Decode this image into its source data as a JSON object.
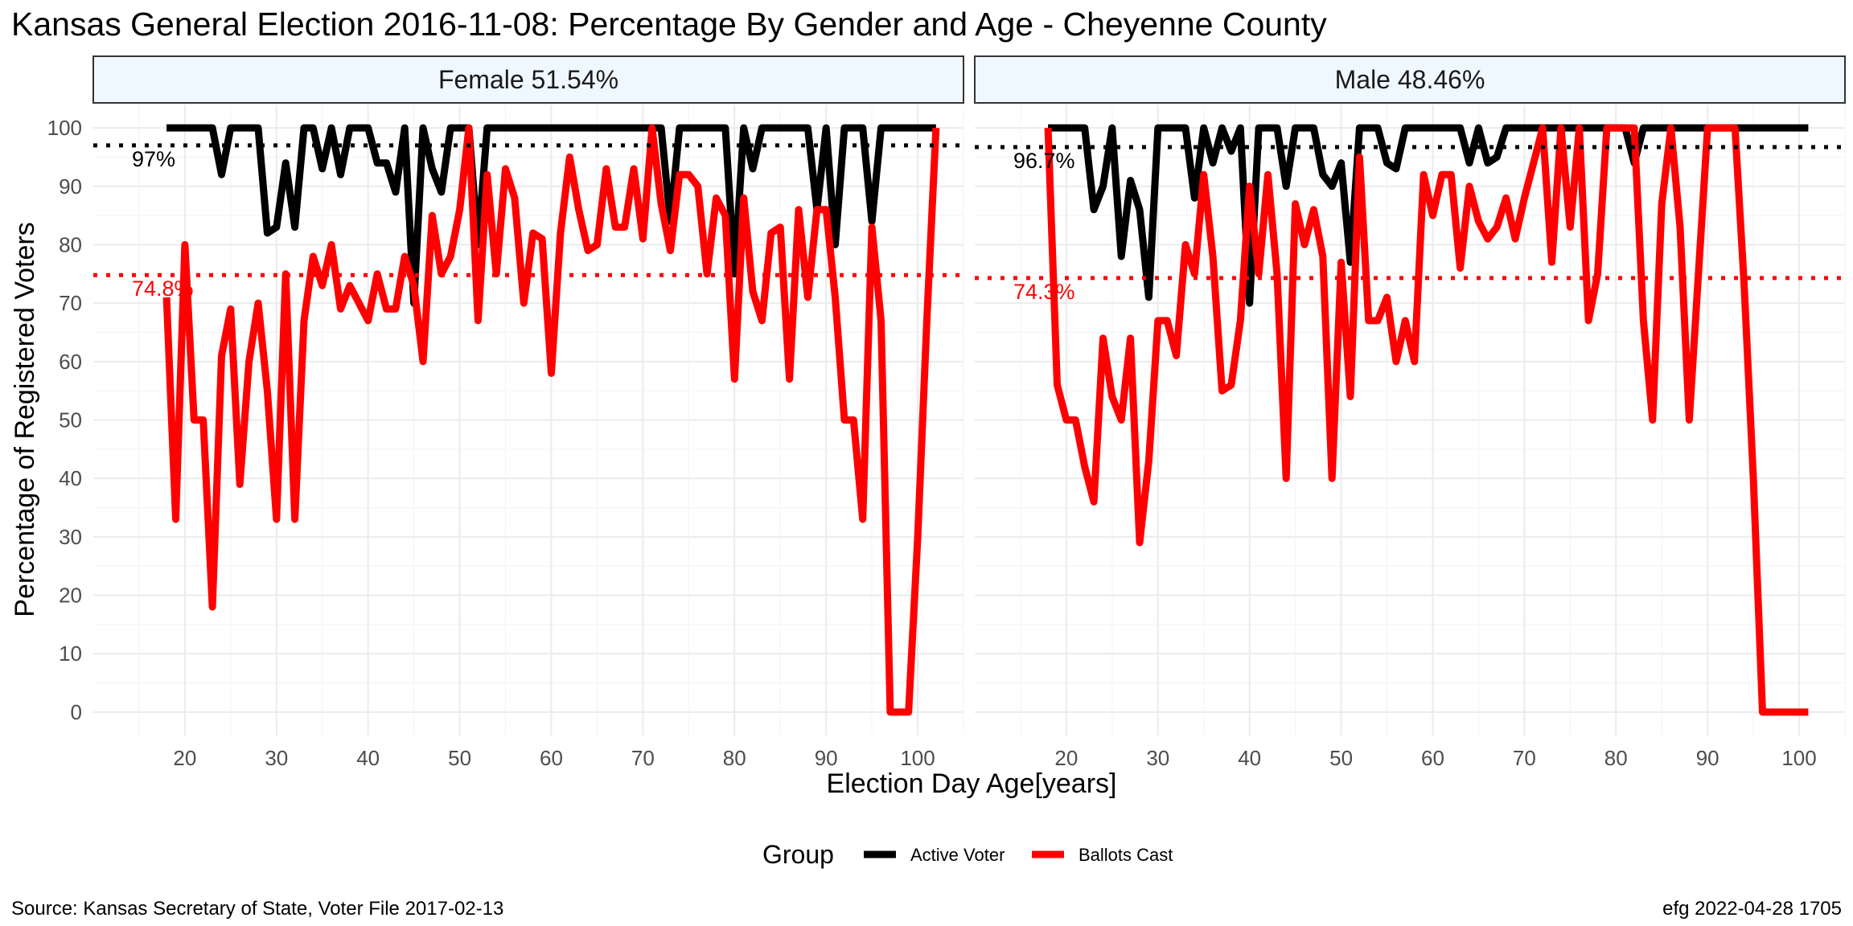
{
  "title": "Kansas General Election 2016-11-08:  Percentage By Gender and Age - Cheyenne County",
  "caption_left": "Source:  Kansas Secretary of State, Voter File  2017-02-13",
  "caption_right": "efg 2022-04-28 1705",
  "legend": {
    "title": "Group",
    "items": [
      {
        "label": "Active Voter",
        "color": "#000000"
      },
      {
        "label": "Ballots Cast",
        "color": "#ff0000"
      }
    ]
  },
  "chart_data": {
    "type": "line",
    "xlabel": "Election Day Age[years]",
    "ylabel": "Percentage of Registered Voters",
    "xlim": [
      10,
      105
    ],
    "ylim": [
      -4,
      104
    ],
    "x_ticks": [
      20,
      30,
      40,
      50,
      60,
      70,
      80,
      90,
      100
    ],
    "y_ticks": [
      0,
      10,
      20,
      30,
      40,
      50,
      60,
      70,
      80,
      90,
      100
    ],
    "grid": true,
    "legend_position": "bottom",
    "colors": {
      "active": "#000000",
      "ballots": "#ff0000",
      "strip_fill": "#f0f8ff"
    },
    "panels": [
      {
        "label": "Female 51.54%",
        "ref_lines": [
          {
            "name": "Active Voter",
            "value": 97,
            "label": "97%",
            "color": "#000000"
          },
          {
            "name": "Ballots Cast",
            "value": 74.8,
            "label": "74.8%",
            "color": "#ff0000"
          }
        ],
        "series": [
          {
            "name": "Active Voter",
            "x": [
              18,
              19,
              20,
              21,
              22,
              23,
              24,
              25,
              26,
              27,
              28,
              29,
              30,
              31,
              32,
              33,
              34,
              35,
              36,
              37,
              38,
              39,
              40,
              41,
              42,
              43,
              44,
              45,
              46,
              47,
              48,
              49,
              50,
              51,
              52,
              53,
              54,
              55,
              56,
              57,
              58,
              59,
              60,
              61,
              62,
              63,
              64,
              65,
              66,
              67,
              68,
              69,
              70,
              71,
              72,
              73,
              74,
              75,
              76,
              77,
              78,
              79,
              80,
              81,
              82,
              83,
              84,
              85,
              86,
              87,
              88,
              89,
              90,
              91,
              92,
              93,
              94,
              95,
              96,
              97,
              98,
              99,
              100,
              101,
              102
            ],
            "y": [
              100,
              100,
              100,
              100,
              100,
              100,
              92,
              100,
              100,
              100,
              100,
              82,
              83,
              94,
              83,
              100,
              100,
              93,
              100,
              92,
              100,
              100,
              100,
              94,
              94,
              89,
              100,
              70,
              100,
              93,
              89,
              100,
              100,
              100,
              80,
              100,
              100,
              100,
              100,
              100,
              100,
              100,
              100,
              100,
              100,
              100,
              100,
              100,
              100,
              100,
              100,
              100,
              100,
              100,
              100,
              84,
              100,
              100,
              100,
              100,
              100,
              100,
              75,
              100,
              93,
              100,
              100,
              100,
              100,
              100,
              100,
              86,
              100,
              80,
              100,
              100,
              100,
              84,
              100,
              100,
              100,
              100,
              100,
              100,
              100
            ]
          },
          {
            "name": "Ballots Cast",
            "x": [
              18,
              19,
              20,
              21,
              22,
              23,
              24,
              25,
              26,
              27,
              28,
              29,
              30,
              31,
              32,
              33,
              34,
              35,
              36,
              37,
              38,
              39,
              40,
              41,
              42,
              43,
              44,
              45,
              46,
              47,
              48,
              49,
              50,
              51,
              52,
              53,
              54,
              55,
              56,
              57,
              58,
              59,
              60,
              61,
              62,
              63,
              64,
              65,
              66,
              67,
              68,
              69,
              70,
              71,
              72,
              73,
              74,
              75,
              76,
              77,
              78,
              79,
              80,
              81,
              82,
              83,
              84,
              85,
              86,
              87,
              88,
              89,
              90,
              91,
              92,
              93,
              94,
              95,
              96,
              97,
              98,
              99,
              100,
              101,
              102
            ],
            "y": [
              71,
              33,
              80,
              50,
              50,
              18,
              61,
              69,
              39,
              60,
              70,
              55,
              33,
              75,
              33,
              67,
              78,
              73,
              80,
              69,
              73,
              70,
              67,
              75,
              69,
              69,
              78,
              73,
              60,
              85,
              75,
              78,
              86,
              100,
              67,
              92,
              75,
              93,
              88,
              70,
              82,
              81,
              58,
              82,
              95,
              86,
              79,
              80,
              93,
              83,
              83,
              93,
              81,
              100,
              87,
              79,
              92,
              92,
              90,
              75,
              88,
              85,
              57,
              88,
              72,
              67,
              82,
              83,
              57,
              86,
              71,
              86,
              86,
              71,
              50,
              50,
              33,
              83,
              67,
              0,
              0,
              0,
              30,
              67,
              100
            ]
          }
        ]
      },
      {
        "label": "Male 48.46%",
        "ref_lines": [
          {
            "name": "Active Voter",
            "value": 96.7,
            "label": "96.7%",
            "color": "#000000"
          },
          {
            "name": "Ballots Cast",
            "value": 74.3,
            "label": "74.3%",
            "color": "#ff0000"
          }
        ],
        "series": [
          {
            "name": "Active Voter",
            "x": [
              18,
              19,
              20,
              21,
              22,
              23,
              24,
              25,
              26,
              27,
              28,
              29,
              30,
              31,
              32,
              33,
              34,
              35,
              36,
              37,
              38,
              39,
              40,
              41,
              42,
              43,
              44,
              45,
              46,
              47,
              48,
              49,
              50,
              51,
              52,
              53,
              54,
              55,
              56,
              57,
              58,
              59,
              60,
              61,
              62,
              63,
              64,
              65,
              66,
              67,
              68,
              69,
              70,
              71,
              72,
              73,
              74,
              75,
              76,
              77,
              78,
              79,
              80,
              81,
              82,
              83,
              84,
              85,
              86,
              87,
              88,
              89,
              90,
              91,
              92,
              93,
              94,
              95,
              96,
              97,
              98,
              99,
              100,
              101
            ],
            "y": [
              100,
              100,
              100,
              100,
              100,
              86,
              90,
              100,
              78,
              91,
              86,
              71,
              100,
              100,
              100,
              100,
              88,
              100,
              94,
              100,
              96,
              100,
              70,
              100,
              100,
              100,
              90,
              100,
              100,
              100,
              92,
              90,
              94,
              77,
              100,
              100,
              100,
              94,
              93,
              100,
              100,
              100,
              100,
              100,
              100,
              100,
              94,
              100,
              94,
              95,
              100,
              100,
              100,
              100,
              100,
              100,
              100,
              100,
              100,
              100,
              100,
              100,
              100,
              100,
              94,
              100,
              100,
              100,
              100,
              100,
              100,
              100,
              100,
              100,
              100,
              100,
              100,
              100,
              100,
              100,
              100,
              100,
              100,
              100
            ]
          },
          {
            "name": "Ballots Cast",
            "x": [
              18,
              19,
              20,
              21,
              22,
              23,
              24,
              25,
              26,
              27,
              28,
              29,
              30,
              31,
              32,
              33,
              34,
              35,
              36,
              37,
              38,
              39,
              40,
              41,
              42,
              43,
              44,
              45,
              46,
              47,
              48,
              49,
              50,
              51,
              52,
              53,
              54,
              55,
              56,
              57,
              58,
              59,
              60,
              61,
              62,
              63,
              64,
              65,
              66,
              67,
              68,
              69,
              70,
              71,
              72,
              73,
              74,
              75,
              76,
              77,
              78,
              79,
              80,
              81,
              82,
              83,
              84,
              85,
              86,
              87,
              88,
              89,
              90,
              91,
              92,
              93,
              94,
              95,
              96,
              97,
              98,
              99,
              100,
              101
            ],
            "y": [
              100,
              56,
              50,
              50,
              42,
              36,
              64,
              54,
              50,
              64,
              29,
              43,
              67,
              67,
              61,
              80,
              75,
              92,
              78,
              55,
              56,
              67,
              90,
              75,
              92,
              75,
              40,
              87,
              80,
              86,
              78,
              40,
              77,
              54,
              95,
              67,
              67,
              71,
              60,
              67,
              60,
              92,
              85,
              92,
              92,
              76,
              90,
              84,
              81,
              83,
              88,
              81,
              88,
              94,
              100,
              77,
              100,
              83,
              100,
              67,
              75,
              100,
              100,
              100,
              100,
              67,
              50,
              87,
              100,
              83,
              50,
              75,
              100,
              100,
              100,
              100,
              73,
              40,
              0,
              0,
              0,
              0,
              0,
              0
            ]
          }
        ]
      }
    ]
  }
}
